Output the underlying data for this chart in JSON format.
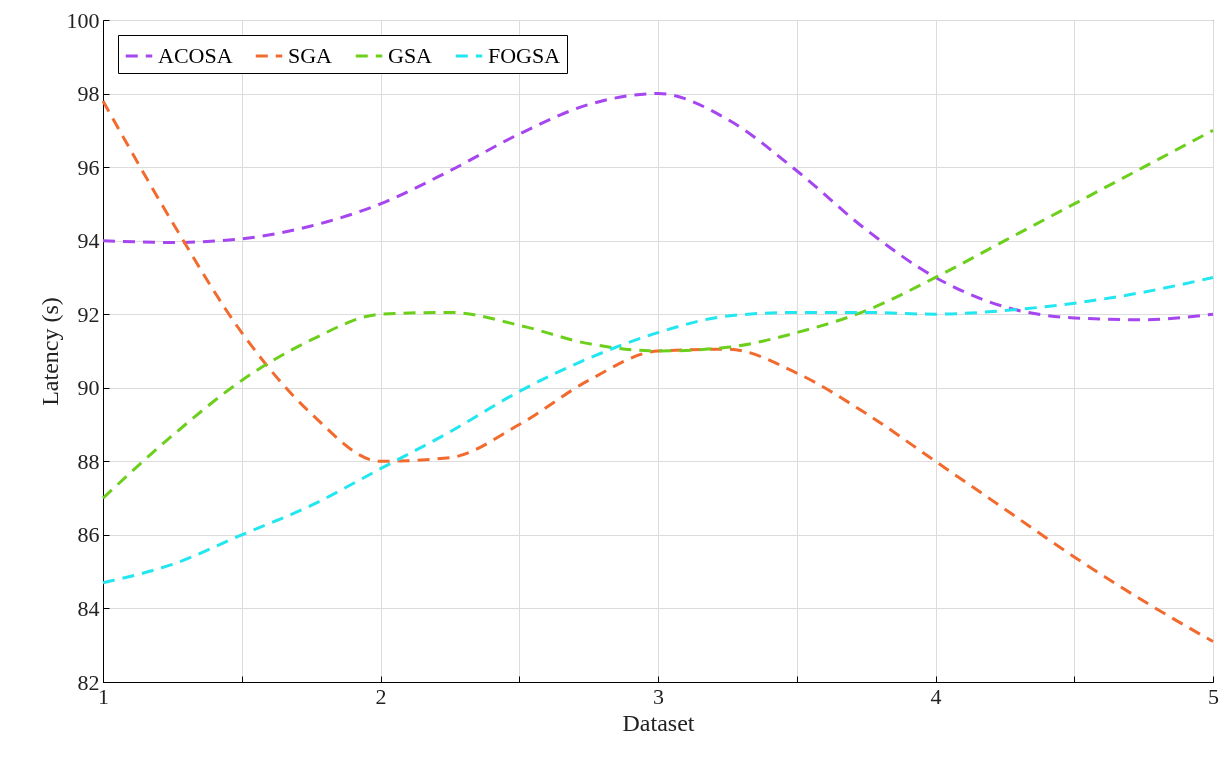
{
  "chart_data": {
    "type": "line",
    "xlabel": "Dataset",
    "ylabel": "Latency (s)",
    "x": [
      1,
      1.25,
      1.5,
      1.75,
      2,
      2.25,
      2.5,
      2.75,
      3,
      3.25,
      3.5,
      3.75,
      4,
      4.25,
      4.5,
      4.75,
      5
    ],
    "series": [
      {
        "name": "ACOSA",
        "color": "#a646f0",
        "values": [
          94,
          93.95,
          94.05,
          94.4,
          95,
          95.9,
          96.9,
          97.7,
          98,
          97.3,
          95.9,
          94.3,
          93,
          92.2,
          91.9,
          91.85,
          92
        ]
      },
      {
        "name": "SGA",
        "color": "#f26a2e",
        "values": [
          97.8,
          94.5,
          91.5,
          89.3,
          88,
          88.1,
          89,
          90.2,
          91,
          91.05,
          90.4,
          89.3,
          88,
          86.7,
          85.4,
          84.2,
          83.1
        ]
      },
      {
        "name": "GSA",
        "color": "#6ccf1c",
        "values": [
          87,
          88.7,
          90.2,
          91.3,
          92,
          92.05,
          91.7,
          91.2,
          91,
          91.1,
          91.5,
          92.1,
          93,
          94,
          95,
          96,
          97
        ]
      },
      {
        "name": "FOGSA",
        "color": "#22e6f0",
        "values": [
          84.7,
          85.2,
          86,
          86.8,
          87.8,
          88.8,
          89.9,
          90.8,
          91.5,
          91.95,
          92.05,
          92.05,
          92,
          92.1,
          92.3,
          92.6,
          93
        ]
      }
    ],
    "xlim": [
      1,
      5
    ],
    "xticks": [
      1,
      {
        "value": 1.5,
        "label": null
      },
      2,
      {
        "value": 2.5,
        "label": null
      },
      3,
      {
        "value": 3.5,
        "label": null
      },
      4,
      {
        "value": 4.5,
        "label": null
      },
      5
    ],
    "ylim": [
      82,
      100
    ],
    "yticks": [
      82,
      84,
      86,
      88,
      90,
      92,
      94,
      96,
      98,
      100
    ],
    "grid": true,
    "legend": "top left",
    "marker": "none",
    "line_style": "dashed"
  }
}
